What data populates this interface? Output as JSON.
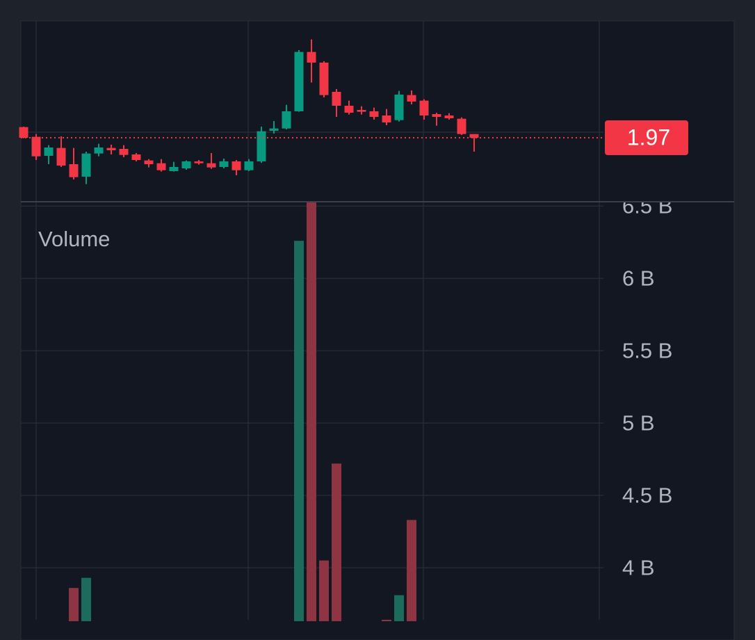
{
  "chart_data": [
    {
      "type": "candlestick",
      "open": [
        1.993,
        1.972,
        1.931,
        1.948,
        1.913,
        1.886,
        1.936,
        1.948,
        1.946,
        1.934,
        1.921,
        1.915,
        1.898,
        1.904,
        1.919,
        1.915,
        1.907,
        1.919,
        1.9,
        1.919,
        1.985,
        1.99,
        2.027,
        2.155,
        2.132,
        2.069,
        2.039,
        2.03,
        2.027,
        2.018,
        2.008,
        2.062,
        2.05,
        2.021,
        2.018,
        2.011,
        1.978
      ],
      "high": [
        1.994,
        1.978,
        1.954,
        1.973,
        1.948,
        1.94,
        1.957,
        1.955,
        1.954,
        1.937,
        1.924,
        1.924,
        1.918,
        1.921,
        1.922,
        1.937,
        1.925,
        1.922,
        1.924,
        1.994,
        2.006,
        2.041,
        2.159,
        2.182,
        2.135,
        2.075,
        2.05,
        2.038,
        2.035,
        2.032,
        2.071,
        2.072,
        2.053,
        2.024,
        2.023,
        2.014,
        1.978
      ],
      "low": [
        1.969,
        1.922,
        1.913,
        1.907,
        1.88,
        1.87,
        1.93,
        1.934,
        1.928,
        1.919,
        1.906,
        1.897,
        1.897,
        1.901,
        1.912,
        1.903,
        1.904,
        1.889,
        1.898,
        1.916,
        1.979,
        1.988,
        2.026,
        2.089,
        2.057,
        2.015,
        2.02,
        2.02,
        2.009,
        1.997,
        2.005,
        2.042,
        2.009,
        1.996,
        2.009,
        1.976,
        1.94
      ],
      "close": [
        1.97,
        1.93,
        1.949,
        1.91,
        1.885,
        1.936,
        1.949,
        1.943,
        1.933,
        1.922,
        1.913,
        1.9,
        1.907,
        1.919,
        1.915,
        1.906,
        1.919,
        1.9,
        1.919,
        1.984,
        1.99,
        2.027,
        2.155,
        2.132,
        2.062,
        2.039,
        2.024,
        2.026,
        2.015,
        2.003,
        2.063,
        2.048,
        2.018,
        2.015,
        2.012,
        1.978,
        1.97
      ],
      "up_color": "#089981",
      "down_color": "#f23645",
      "ylim": [
        1.832,
        2.222
      ],
      "price_label": 1.97
    },
    {
      "type": "bar",
      "title": "Volume",
      "values": [
        null,
        null,
        null,
        null,
        3.86,
        3.93,
        null,
        null,
        null,
        null,
        null,
        null,
        null,
        null,
        null,
        null,
        null,
        null,
        null,
        null,
        null,
        null,
        6.26,
        6.6,
        4.05,
        4.72,
        null,
        null,
        null,
        3.64,
        3.81,
        4.33,
        null,
        null,
        null,
        null,
        null
      ],
      "up_color": "#1d6b5c",
      "down_color": "#8e3442",
      "ylim": [
        3.63,
        6.53
      ],
      "yticks": [
        {
          "value": 4,
          "label": "4 B"
        },
        {
          "value": 4.5,
          "label": "4.5 B"
        },
        {
          "value": 5,
          "label": "5 B"
        },
        {
          "value": 5.5,
          "label": "5.5 B"
        },
        {
          "value": 6,
          "label": "6 B"
        },
        {
          "value": 6.5,
          "label": "6.5 B"
        }
      ],
      "grid": true
    }
  ]
}
